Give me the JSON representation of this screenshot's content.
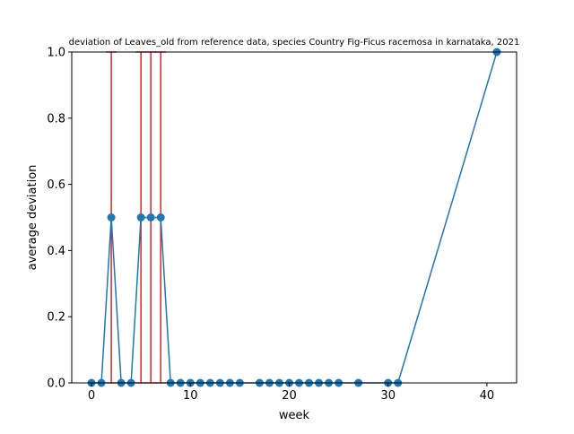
{
  "chart_data": {
    "type": "line",
    "title": "deviation of Leaves_old from reference data, species Country Fig-Ficus racemosa in karnataka, 2021",
    "xlabel": "week",
    "ylabel": "average deviation",
    "xlim": [
      -2,
      43
    ],
    "ylim": [
      0,
      1
    ],
    "x_ticks": [
      0,
      10,
      20,
      30,
      40
    ],
    "x_tick_labels": [
      "0",
      "10",
      "20",
      "30",
      "40"
    ],
    "y_ticks": [
      0,
      0.2,
      0.4,
      0.6,
      0.8,
      1.0
    ],
    "y_tick_labels": [
      "0.0",
      "0.2",
      "0.4",
      "0.6",
      "0.8",
      "1.0"
    ],
    "grid": false,
    "colors": {
      "line": "#1f77b4",
      "error_bar": "#d62728"
    },
    "series": [
      {
        "x": [
          0,
          1,
          2,
          3,
          4,
          5,
          6,
          7,
          8,
          9,
          10,
          11,
          12,
          13,
          14,
          15,
          17,
          18,
          19,
          20,
          21,
          22,
          23,
          24,
          25,
          27,
          30,
          31,
          41
        ],
        "y": [
          0,
          0,
          0.5,
          0,
          0,
          0.5,
          0.5,
          0.5,
          0,
          0,
          0,
          0,
          0,
          0,
          0,
          0,
          0,
          0,
          0,
          0,
          0,
          0,
          0,
          0,
          0,
          0,
          0,
          0,
          1.0
        ],
        "error": [
          0,
          0,
          0.5,
          0,
          0,
          0.5,
          0.5,
          0.5,
          0,
          0,
          0,
          0,
          0,
          0,
          0,
          0,
          0,
          0,
          0,
          0,
          0,
          0,
          0,
          0,
          0,
          0,
          0,
          0,
          0
        ]
      }
    ]
  }
}
